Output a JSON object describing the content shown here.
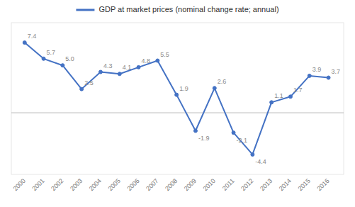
{
  "chart_data": {
    "type": "line",
    "x": [
      2000,
      2001,
      2002,
      2003,
      2004,
      2005,
      2006,
      2007,
      2008,
      2009,
      2010,
      2011,
      2012,
      2013,
      2014,
      2015,
      2016
    ],
    "series": [
      {
        "name": "GDP at market prices (nominal change rate; annual)",
        "color": "#4472C4",
        "marker": "circle",
        "line_style": "solid",
        "values": [
          7.4,
          5.7,
          5.0,
          2.5,
          4.3,
          4.1,
          4.8,
          5.5,
          1.9,
          -1.9,
          2.6,
          -2.1,
          -4.4,
          1.1,
          1.7,
          3.9,
          3.7
        ],
        "value_labels": [
          "7.4",
          "5.7",
          "5.0",
          "2.5",
          "4.3",
          "4.1",
          "4.8",
          "5.5",
          "1.9",
          "-1.9",
          "2.6",
          "-2.1",
          "-4.4",
          "1.1",
          "1.7",
          "3.9",
          "3.7"
        ]
      }
    ],
    "xlim": [
      1999.3,
      2016.8
    ],
    "xticks": [
      2000,
      2001,
      2002,
      2003,
      2004,
      2005,
      2006,
      2007,
      2008,
      2009,
      2010,
      2011,
      2012,
      2013,
      2014,
      2015,
      2016
    ],
    "ylim": [
      -6.5,
      9.5
    ],
    "yticks": [
      0
    ],
    "tick_labels": "x",
    "data_labels": true,
    "legend": "top"
  }
}
